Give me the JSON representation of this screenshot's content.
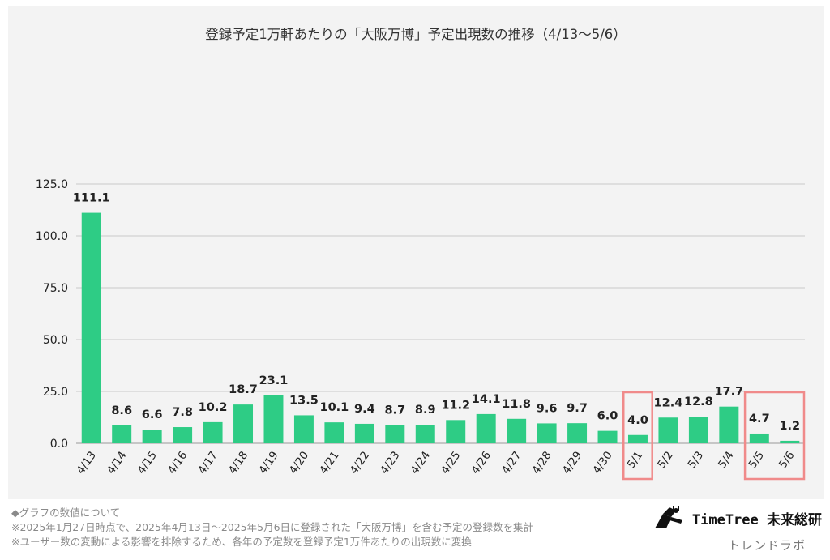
{
  "chart_data": {
    "type": "bar",
    "title": "登録予定1万軒あたりの「大阪万博」予定出現数の推移（4/13〜5/6）",
    "categories": [
      "4/13",
      "4/14",
      "4/15",
      "4/16",
      "4/17",
      "4/18",
      "4/19",
      "4/20",
      "4/21",
      "4/22",
      "4/23",
      "4/24",
      "4/25",
      "4/26",
      "4/27",
      "4/28",
      "4/29",
      "4/30",
      "5/1",
      "5/2",
      "5/3",
      "5/4",
      "5/5",
      "5/6"
    ],
    "values": [
      111.1,
      8.6,
      6.6,
      7.8,
      10.2,
      18.7,
      23.1,
      13.5,
      10.1,
      9.4,
      8.7,
      8.9,
      11.2,
      14.1,
      11.8,
      9.6,
      9.7,
      6.0,
      4.0,
      12.4,
      12.8,
      17.7,
      4.7,
      1.2
    ],
    "value_labels": [
      "111.1",
      "8.6",
      "6.6",
      "7.8",
      "10.2",
      "18.7",
      "23.1",
      "13.5",
      "10.1",
      "9.4",
      "8.7",
      "8.9",
      "11.2",
      "14.1",
      "11.8",
      "9.6",
      "9.7",
      "6.0",
      "4.0",
      "12.4",
      "12.8",
      "17.7",
      "4.7",
      "1.2"
    ],
    "ylim": [
      0,
      125
    ],
    "yticks": [
      0,
      25,
      50,
      75,
      100,
      125
    ],
    "ytick_labels": [
      "0.0",
      "25.0",
      "50.0",
      "75.0",
      "100.0",
      "125.0"
    ],
    "grid": true,
    "bar_color": "#2ecc85",
    "highlight_color": "#f08a8a",
    "highlight_groups": [
      [
        "5/1"
      ],
      [
        "5/5",
        "5/6"
      ]
    ]
  },
  "footer": {
    "line1": "◆グラフの数値について",
    "line2": "※2025年1月27日時点で、2025年4月13日〜2025年5月6日に登録された「大阪万博」を含む予定の登録数を集計",
    "line3": "※ユーザー数の変動による影響を排除するため、各年の予定数を登録予定1万件あたりの出現数に変換"
  },
  "brand": {
    "name": "TimeTree 未来総研",
    "sub": "トレンドラボ"
  }
}
